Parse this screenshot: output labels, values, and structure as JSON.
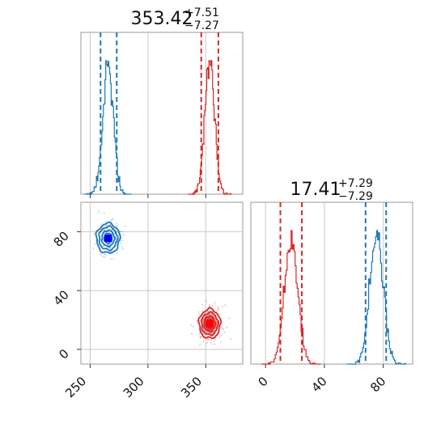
{
  "chart_data": {
    "type": "corner",
    "colors": {
      "blue": "#1f77b4",
      "red": "#d62728",
      "marker_blue": "#0000ff",
      "marker_red": "#ff0000"
    },
    "parameters": [
      {
        "title_main": "353.42",
        "title_upper": "+7.51",
        "title_lower": "−7.27"
      },
      {
        "title_main": "17.41",
        "title_upper": "+7.29",
        "title_lower": "−7.29"
      }
    ],
    "x_axis": {
      "ticks": [
        250,
        300,
        350
      ],
      "range": [
        242,
        382
      ]
    },
    "y_axis": {
      "ticks": [
        0,
        40,
        80
      ],
      "range": [
        -10,
        100
      ]
    },
    "hist1_range": [
      0,
      1
    ],
    "hist2_range": [
      -10,
      100
    ],
    "series": [
      {
        "color": "blue",
        "x_mean": 265.5,
        "x_sd": 4.5,
        "x_quantiles": [
          259,
          273
        ],
        "y_mean": 75.5,
        "y_sd": 4.5,
        "y_quantiles": [
          68,
          82
        ],
        "marker": [
          265.5,
          75.5
        ]
      },
      {
        "color": "red",
        "x_mean": 353.4,
        "x_sd": 4.2,
        "x_quantiles": [
          346.1,
          360.9
        ],
        "y_mean": 17.4,
        "y_sd": 4.5,
        "y_quantiles": [
          10.1,
          24.7
        ],
        "marker": [
          353.4,
          17.4
        ]
      }
    ]
  }
}
